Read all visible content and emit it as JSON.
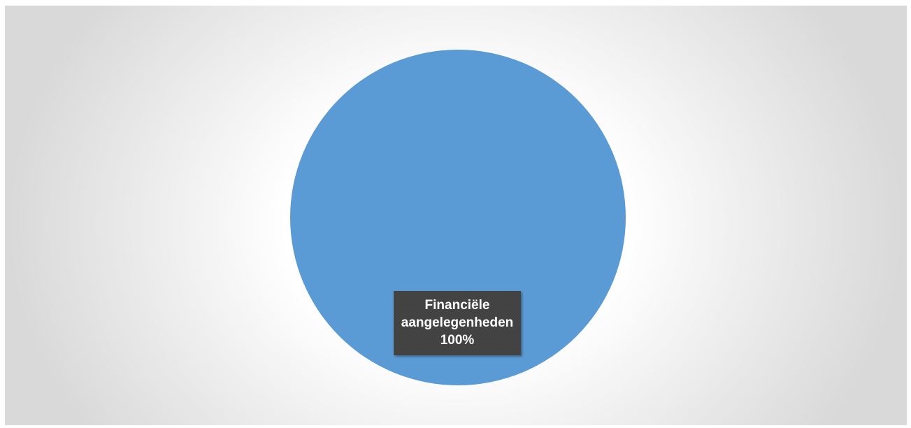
{
  "chart_data": {
    "type": "pie",
    "title": "",
    "categories": [
      "Financiële aangelegenheden"
    ],
    "values": [
      100
    ],
    "slices": [
      {
        "name": "Financiële aangelegenheden",
        "value": 100,
        "label_lines": [
          "Financiële",
          "aangelegenheden",
          "100%"
        ],
        "color": "#5b9bd5"
      }
    ],
    "legend": "none",
    "data_label_background": "#404040"
  }
}
